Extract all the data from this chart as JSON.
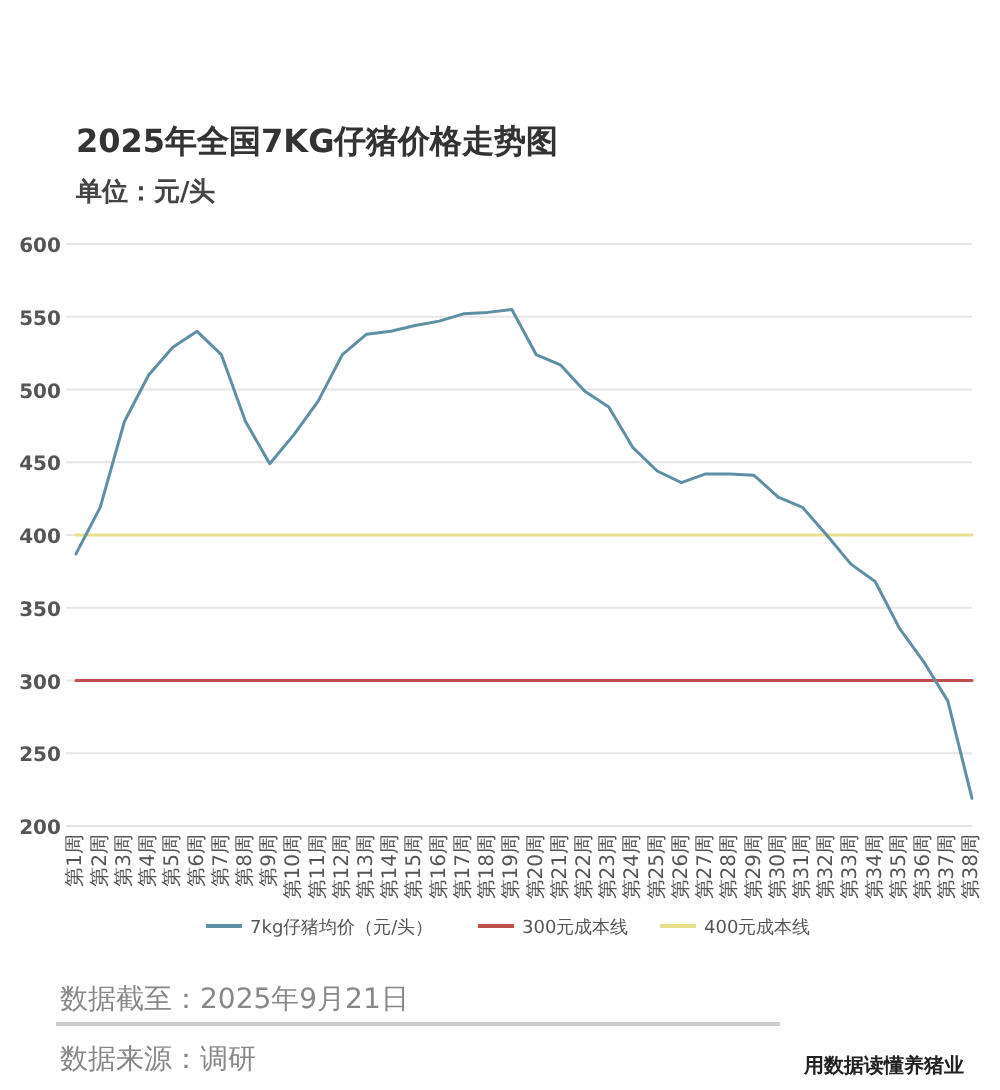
{
  "chart_data": {
    "type": "line",
    "title": "2025年全国7KG仔猪价格走势图",
    "subtitle": "单位：元/头",
    "categories": [
      "第1周",
      "第2周",
      "第3周",
      "第4周",
      "第5周",
      "第6周",
      "第7周",
      "第8周",
      "第9周",
      "第10周",
      "第11周",
      "第12周",
      "第13周",
      "第14周",
      "第15周",
      "第16周",
      "第17周",
      "第18周",
      "第19周",
      "第20周",
      "第21周",
      "第22周",
      "第23周",
      "第24周",
      "第25周",
      "第26周",
      "第27周",
      "第28周",
      "第29周",
      "第30周",
      "第31周",
      "第32周",
      "第33周",
      "第34周",
      "第35周",
      "第36周",
      "第37周",
      "第38周"
    ],
    "series": [
      {
        "name": "7kg仔猪均价（元/头）",
        "color": "#5f8fa3",
        "values": [
          387,
          419,
          478,
          510,
          529,
          540,
          524,
          478,
          449,
          469,
          492,
          524,
          538,
          540,
          544,
          547,
          552,
          553,
          555,
          524,
          517,
          499,
          488,
          460,
          444,
          436,
          442,
          442,
          441,
          426,
          419,
          400,
          380,
          368,
          336,
          313,
          286,
          219
        ]
      },
      {
        "name": "300元成本线",
        "color": "#c0504d",
        "values": [
          300,
          300,
          300,
          300,
          300,
          300,
          300,
          300,
          300,
          300,
          300,
          300,
          300,
          300,
          300,
          300,
          300,
          300,
          300,
          300,
          300,
          300,
          300,
          300,
          300,
          300,
          300,
          300,
          300,
          300,
          300,
          300,
          300,
          300,
          300,
          300,
          300,
          300
        ]
      },
      {
        "name": "400元成本线",
        "color": "#e6df8c",
        "values": [
          400,
          400,
          400,
          400,
          400,
          400,
          400,
          400,
          400,
          400,
          400,
          400,
          400,
          400,
          400,
          400,
          400,
          400,
          400,
          400,
          400,
          400,
          400,
          400,
          400,
          400,
          400,
          400,
          400,
          400,
          400,
          400,
          400,
          400,
          400,
          400,
          400,
          400
        ]
      }
    ],
    "ylim": [
      200,
      600
    ],
    "yticks": [
      200,
      250,
      300,
      350,
      400,
      450,
      500,
      550,
      600
    ],
    "grid": "y",
    "legend": "bottom",
    "annotations": [
      "数据截至：2025年9月21日",
      "数据来源：调研",
      "用数据读懂养猪业"
    ]
  }
}
